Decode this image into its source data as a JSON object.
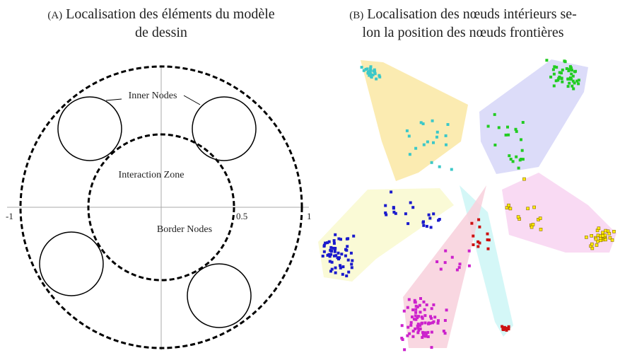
{
  "panel_a": {
    "tag": "(A)",
    "caption": [
      "Localisation des éléments du modèle",
      "de dessin"
    ],
    "labels": {
      "inner": "Inner Nodes",
      "zone": "Interaction Zone",
      "border": "Border Nodes"
    },
    "axis_labels": [
      "-1",
      "0.5",
      "1"
    ]
  },
  "panel_b": {
    "tag": "(B)",
    "caption": [
      "Localisation des nœuds intérieurs se-",
      "lon la position des nœuds frontières"
    ]
  }
}
